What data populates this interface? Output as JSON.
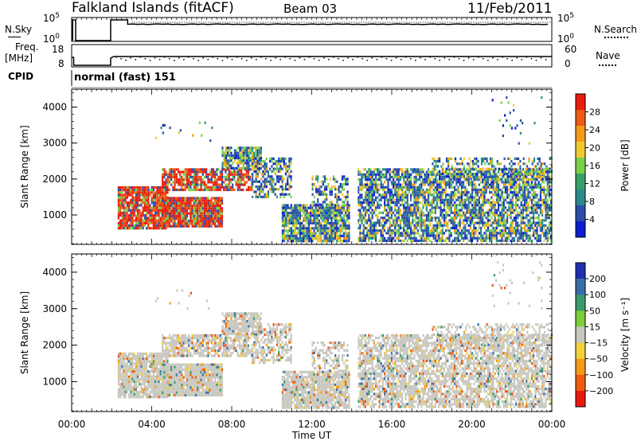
{
  "header": {
    "title": "Falkland Islands (fitACF)",
    "beam": "Beam 03",
    "date": "11/Feb/2011"
  },
  "top_panels": {
    "noise_left_label": "N.Sky",
    "noise_right_label": "N.Search",
    "noise_ticks": [
      "10^5",
      "10^0"
    ],
    "freq_left_label": "Freq.",
    "freq_left_unit": "[MHz]",
    "freq_ticks": [
      "18",
      "8"
    ],
    "nave_label": "Nave",
    "nave_ticks": [
      "60",
      "0"
    ],
    "cpid_label": "CPID",
    "cpid_mode": "normal (fast) 151"
  },
  "chart_data": [
    {
      "type": "heatmap",
      "panel": "power",
      "ylabel": "Slant Range [km]",
      "yticks": [
        1000,
        2000,
        3000,
        4000
      ],
      "ylim": [
        180,
        4500
      ],
      "xlim": [
        0,
        24
      ],
      "colorbar_label": "Power [dB]",
      "colorbar_ticks": [
        4,
        8,
        12,
        16,
        20,
        24,
        28
      ],
      "colorbar_colors": [
        "#0b1fd0",
        "#2b4fa8",
        "#2e8a8a",
        "#3aa06a",
        "#7bd04a",
        "#f2c832",
        "#f59a18",
        "#ec5a14",
        "#e81e10"
      ]
    },
    {
      "type": "heatmap",
      "panel": "velocity",
      "ylabel": "Slant Range [km]",
      "yticks": [
        1000,
        2000,
        3000,
        4000
      ],
      "ylim": [
        180,
        4500
      ],
      "xlim": [
        0,
        24
      ],
      "xticks": [
        "00:00",
        "04:00",
        "08:00",
        "12:00",
        "16:00",
        "20:00",
        "00:00"
      ],
      "xlabel": "Time UT",
      "colorbar_label": "Velocity [m s⁻¹]",
      "colorbar_ticks": [
        200,
        100,
        50,
        15,
        -15,
        -50,
        -100,
        -200
      ],
      "colorbar_colors": [
        "#1f2fb0",
        "#3a6ea8",
        "#3a9a6a",
        "#7ccc3c",
        "#c8c8c0",
        "#f2d040",
        "#f29a1a",
        "#ee5a10",
        "#e81a10"
      ]
    }
  ]
}
